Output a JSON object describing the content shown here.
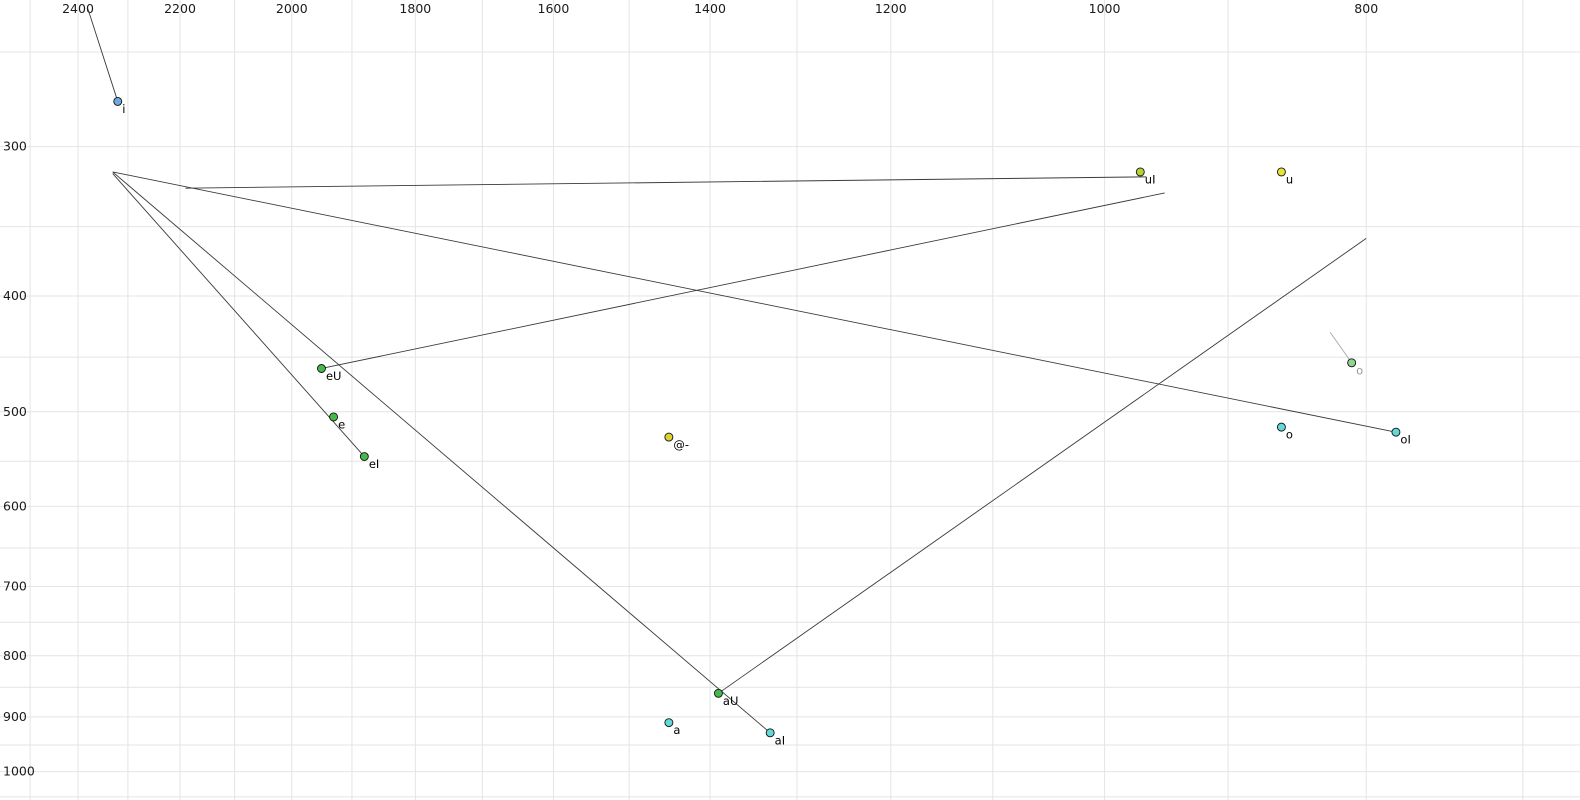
{
  "chart_data": {
    "type": "scatter",
    "title": "",
    "description": "Vowel formant chart (F2 horizontal reversed log scale in Hz, F1 vertical log scale in Hz) with monophthong/diphthong points and glide trajectory lines",
    "grid": true,
    "grid_color": "#e4e4e4",
    "line_color": "#3a3a3a",
    "x_axis": {
      "unit": "Hz",
      "scale": "log-reversed",
      "ticks": [
        2400,
        2200,
        2000,
        1800,
        1600,
        1400,
        1200,
        1000,
        800
      ],
      "minor_step": 100,
      "range": [
        2500,
        700
      ]
    },
    "y_axis": {
      "unit": "Hz",
      "scale": "log",
      "ticks": [
        300,
        400,
        500,
        600,
        700,
        800,
        900,
        1000
      ],
      "minor_step": 50,
      "range": [
        250,
        1050
      ]
    },
    "points": [
      {
        "label": "i",
        "f2": 2320,
        "f1": 275,
        "fill": "#6fa8dc",
        "label_color": "#000000"
      },
      {
        "label": "uI",
        "f2": 970,
        "f1": 315,
        "fill": "#b4d435",
        "label_color": "#000000"
      },
      {
        "label": "u",
        "f2": 860,
        "f1": 315,
        "fill": "#e6e339",
        "label_color": "#000000"
      },
      {
        "label": "eU",
        "f2": 1950,
        "f1": 460,
        "fill": "#47b84c",
        "label_color": "#000000"
      },
      {
        "label": "e",
        "f2": 1930,
        "f1": 505,
        "fill": "#47b84c",
        "label_color": "#000000"
      },
      {
        "label": "eI",
        "f2": 1880,
        "f1": 545,
        "fill": "#47b84c",
        "label_color": "#000000"
      },
      {
        "label": "@-",
        "f2": 1450,
        "f1": 525,
        "fill": "#d9d433",
        "label_color": "#000000"
      },
      {
        "label": "o",
        "f2": 810,
        "f1": 455,
        "fill": "#8fd48f",
        "label_color": "#9a9a9a"
      },
      {
        "label": "o",
        "f2": 860,
        "f1": 515,
        "fill": "#62d8d8",
        "label_color": "#000000"
      },
      {
        "label": "oI",
        "f2": 780,
        "f1": 520,
        "fill": "#62d8d8",
        "label_color": "#000000"
      },
      {
        "label": "aU",
        "f2": 1390,
        "f1": 860,
        "fill": "#47b84c",
        "label_color": "#000000"
      },
      {
        "label": "a",
        "f2": 1450,
        "f1": 910,
        "fill": "#62d8d8",
        "label_color": "#000000"
      },
      {
        "label": "aI",
        "f2": 1330,
        "f1": 928,
        "fill": "#62d8d8",
        "label_color": "#000000"
      }
    ],
    "lines": [
      {
        "name": "i-glide",
        "color": "#3a3a3a",
        "points": [
          [
            2380,
            230
          ],
          [
            2320,
            275
          ]
        ]
      },
      {
        "name": "uI-glide",
        "color": "#3a3a3a",
        "points": [
          [
            2190,
            325
          ],
          [
            965,
            318
          ]
        ]
      },
      {
        "name": "eU-glide",
        "color": "#3a3a3a",
        "points": [
          [
            1950,
            460
          ],
          [
            950,
            328
          ]
        ]
      },
      {
        "name": "eI-glide",
        "color": "#3a3a3a",
        "points": [
          [
            1880,
            545
          ],
          [
            2330,
            316
          ]
        ]
      },
      {
        "name": "aI-glide",
        "color": "#3a3a3a",
        "points": [
          [
            1330,
            928
          ],
          [
            2330,
            315
          ]
        ]
      },
      {
        "name": "oI-glide",
        "color": "#3a3a3a",
        "points": [
          [
            780,
            520
          ],
          [
            2330,
            315
          ]
        ]
      },
      {
        "name": "aU-glide",
        "color": "#3a3a3a",
        "points": [
          [
            1390,
            860
          ],
          [
            800,
            358
          ]
        ]
      },
      {
        "name": "o-glide",
        "color": "#aaaaaa",
        "points": [
          [
            825,
            429
          ],
          [
            810,
            455
          ]
        ]
      }
    ]
  }
}
